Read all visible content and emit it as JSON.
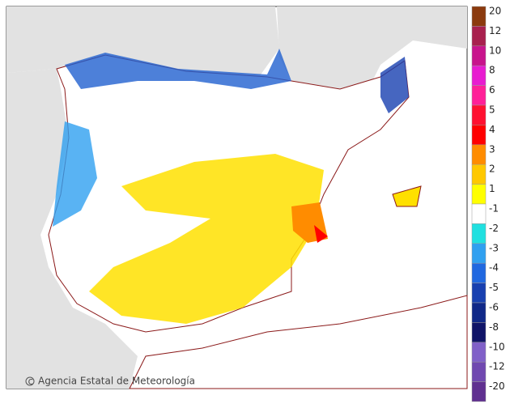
{
  "credit": "Agencia Estatal de Meteorología",
  "legend": {
    "items": [
      {
        "label": "20",
        "color": "#8b3a0e"
      },
      {
        "label": "12",
        "color": "#a8204e"
      },
      {
        "label": "10",
        "color": "#c8148c"
      },
      {
        "label": "8",
        "color": "#e81cd0"
      },
      {
        "label": "6",
        "color": "#ff2098"
      },
      {
        "label": "5",
        "color": "#ff1030"
      },
      {
        "label": "4",
        "color": "#ff0000"
      },
      {
        "label": "3",
        "color": "#ff8c00"
      },
      {
        "label": "2",
        "color": "#ffc800"
      },
      {
        "label": "1",
        "color": "#ffff00"
      },
      {
        "label": "-1",
        "color": "#ffffff"
      },
      {
        "label": "-2",
        "color": "#20e0e0"
      },
      {
        "label": "-3",
        "color": "#30a0f0"
      },
      {
        "label": "-4",
        "color": "#2068e0"
      },
      {
        "label": "-5",
        "color": "#1840b0"
      },
      {
        "label": "-6",
        "color": "#102888"
      },
      {
        "label": "-8",
        "color": "#101468"
      },
      {
        "label": "-10",
        "color": "#8060c8"
      },
      {
        "label": "-12",
        "color": "#7048b0"
      },
      {
        "label": "-20",
        "color": "#603090"
      }
    ]
  }
}
